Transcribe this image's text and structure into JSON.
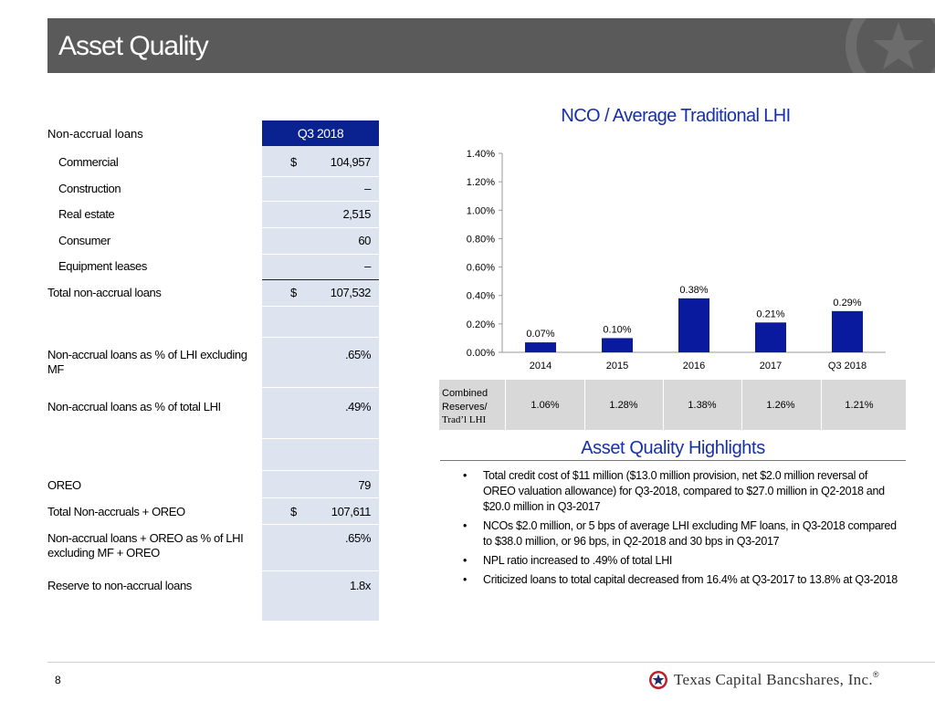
{
  "header": {
    "title": "Asset Quality"
  },
  "table": {
    "title": "Non-accrual loans",
    "column_header": "Q3 2018",
    "rows": [
      {
        "label": "Commercial",
        "dollar": "$",
        "value": "104,957"
      },
      {
        "label": "Construction",
        "dollar": "",
        "value": "–"
      },
      {
        "label": "Real estate",
        "dollar": "",
        "value": "2,515"
      },
      {
        "label": "Consumer",
        "dollar": "",
        "value": "60"
      },
      {
        "label": "Equipment leases",
        "dollar": "",
        "value": "–"
      },
      {
        "label": "Total non-accrual loans",
        "dollar": "$",
        "value": "107,532"
      },
      {
        "label": "Non-accrual loans as % of LHI excluding MF",
        "dollar": "",
        "value": ".65%"
      },
      {
        "label": "Non-accrual loans as % of total LHI",
        "dollar": "",
        "value": ".49%"
      },
      {
        "label": "OREO",
        "dollar": "",
        "value": "79"
      },
      {
        "label": "Total Non-accruals + OREO",
        "dollar": "$",
        "value": "107,611"
      },
      {
        "label": "Non-accrual loans + OREO as % of LHI excluding MF + OREO",
        "dollar": "",
        "value": ".65%"
      },
      {
        "label": "Reserve to non-accrual loans",
        "dollar": "",
        "value": "1.8x"
      }
    ]
  },
  "chart_data": {
    "type": "bar",
    "title": "NCO / Average Traditional LHI",
    "categories": [
      "2014",
      "2015",
      "2016",
      "2017",
      "Q3 2018"
    ],
    "values": [
      0.07,
      0.1,
      0.38,
      0.21,
      0.29
    ],
    "value_labels": [
      "0.07%",
      "0.10%",
      "0.38%",
      "0.21%",
      "0.29%"
    ],
    "ylim": [
      0,
      1.4
    ],
    "yticks": [
      "0.00%",
      "0.20%",
      "0.40%",
      "0.60%",
      "0.80%",
      "1.00%",
      "1.20%",
      "1.40%"
    ],
    "grid": false,
    "bar_color": "#0a1a9e"
  },
  "reserves": {
    "label_line1": "Combined",
    "label_line2": "Reserves/",
    "label_line3": "Trad’l LHI",
    "values": [
      "1.06%",
      "1.28%",
      "1.38%",
      "1.26%",
      "1.21%"
    ]
  },
  "highlights": {
    "title": "Asset Quality Highlights",
    "bullet": "•",
    "items": [
      "Total credit cost of $11 million ($13.0 million provision, net $2.0 million reversal of OREO valuation allowance) for Q3-2018, compared to $27.0 million in Q2-2018 and $20.0 million in Q3-2017",
      "NCOs $2.0 million, or 5 bps of average LHI excluding MF loans, in Q3-2018 compared to $38.0 million, or 96 bps, in Q2-2018 and 30 bps in Q3-2017",
      "NPL ratio increased to .49% of total LHI",
      "Criticized loans to total capital decreased from 16.4% at Q3-2017 to 13.8% at Q3-2018"
    ]
  },
  "footer": {
    "page_number": "8",
    "logo_text": "Texas Capital Bancshares, Inc.",
    "logo_trademark": "®"
  }
}
